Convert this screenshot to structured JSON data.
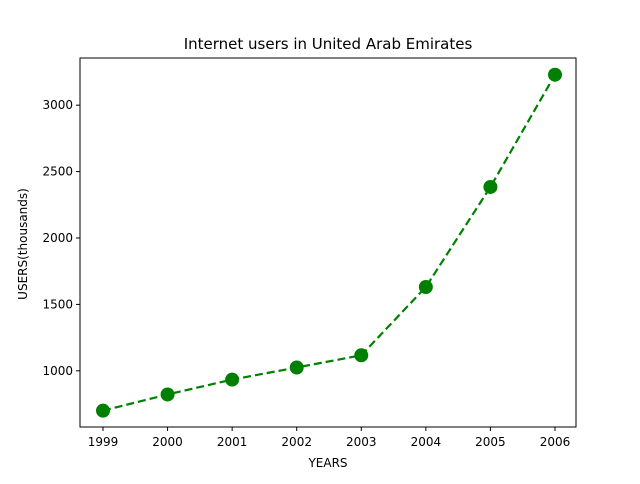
{
  "chart_data": {
    "type": "line",
    "title": "Internet users in United Arab Emirates",
    "xlabel": "YEARS",
    "ylabel": "USERS(thousands)",
    "x": [
      "1999",
      "2000",
      "2001",
      "2002",
      "2003",
      "2004",
      "2005",
      "2006"
    ],
    "series": [
      {
        "values": [
          700,
          822,
          934,
          1025,
          1117,
          1631,
          2384,
          3229
        ],
        "color": "#008000",
        "line_style": "dashed",
        "marker": "circle"
      }
    ],
    "ylim": [
      577,
      3355
    ],
    "y_ticks": [
      1000,
      1500,
      2000,
      2500,
      3000
    ],
    "grid": false
  }
}
